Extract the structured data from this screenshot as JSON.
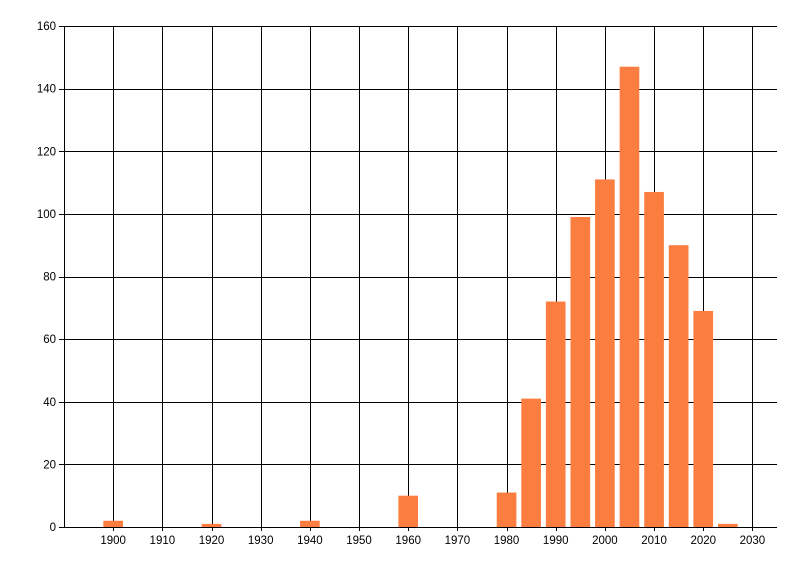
{
  "chart_data": {
    "type": "bar",
    "title": "",
    "xlabel": "",
    "ylabel": "",
    "x": [
      1900,
      1920,
      1940,
      1960,
      1980,
      1985,
      1990,
      1995,
      2000,
      2005,
      2010,
      2015,
      2020,
      2025
    ],
    "values": [
      2,
      1,
      2,
      10,
      11,
      41,
      72,
      99,
      111,
      147,
      107,
      90,
      69,
      1
    ],
    "bar_width_years": 4,
    "bar_color": "#fb7e40",
    "axis_color": "#000000",
    "grid_color": "#000000",
    "background_color": "#ffffff",
    "xlim": [
      1890,
      2035
    ],
    "ylim": [
      0,
      160
    ],
    "x_ticks": [
      1900,
      1910,
      1920,
      1930,
      1940,
      1950,
      1960,
      1970,
      1980,
      1990,
      2000,
      2010,
      2020,
      2030
    ],
    "x_tick_labels": [
      "1900",
      "1910",
      "1920",
      "1930",
      "1940",
      "1950",
      "1960",
      "1970",
      "1980",
      "1990",
      "2000",
      "2010",
      "2020",
      "2030"
    ],
    "y_ticks": [
      0,
      20,
      40,
      60,
      80,
      100,
      120,
      140,
      160
    ],
    "y_tick_labels": [
      "0",
      "20",
      "40",
      "60",
      "80",
      "100",
      "120",
      "140",
      "160"
    ],
    "grid": true,
    "legend": null
  }
}
